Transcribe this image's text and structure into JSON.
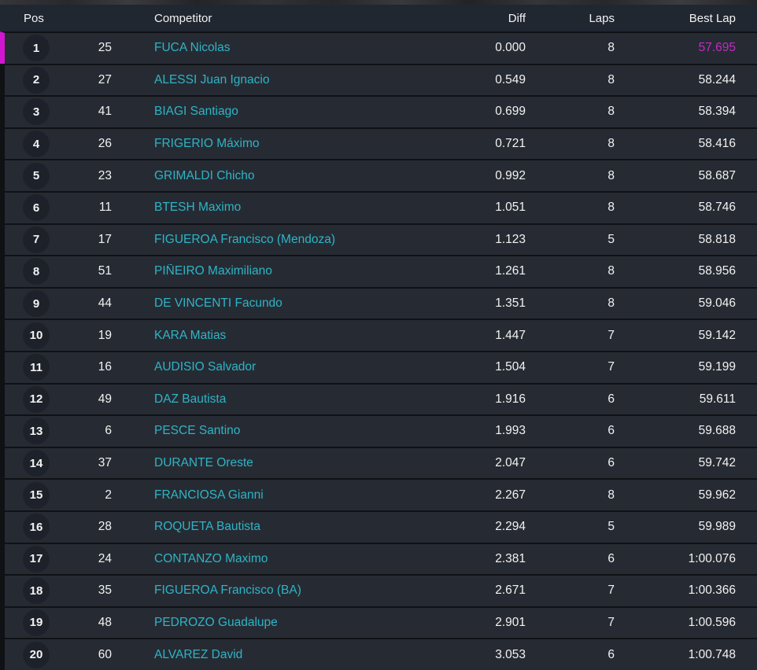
{
  "table": {
    "columns": {
      "pos": "Pos",
      "competitor": "Competitor",
      "diff": "Diff",
      "laps": "Laps",
      "best_lap": "Best Lap"
    },
    "rows": [
      {
        "pos": "1",
        "car_number": "25",
        "name": "FUCA Nicolas",
        "diff": "0.000",
        "laps": "8",
        "best_lap": "57.695",
        "leader": true,
        "fastest_lap": true
      },
      {
        "pos": "2",
        "car_number": "27",
        "name": "ALESSI Juan Ignacio",
        "diff": "0.549",
        "laps": "8",
        "best_lap": "58.244"
      },
      {
        "pos": "3",
        "car_number": "41",
        "name": "BIAGI Santiago",
        "diff": "0.699",
        "laps": "8",
        "best_lap": "58.394"
      },
      {
        "pos": "4",
        "car_number": "26",
        "name": "FRIGERIO Máximo",
        "diff": "0.721",
        "laps": "8",
        "best_lap": "58.416"
      },
      {
        "pos": "5",
        "car_number": "23",
        "name": "GRIMALDI Chicho",
        "diff": "0.992",
        "laps": "8",
        "best_lap": "58.687"
      },
      {
        "pos": "6",
        "car_number": "11",
        "name": "BTESH Maximo",
        "diff": "1.051",
        "laps": "8",
        "best_lap": "58.746"
      },
      {
        "pos": "7",
        "car_number": "17",
        "name": "FIGUEROA Francisco (Mendoza)",
        "diff": "1.123",
        "laps": "5",
        "best_lap": "58.818"
      },
      {
        "pos": "8",
        "car_number": "51",
        "name": "PIÑEIRO Maximiliano",
        "diff": "1.261",
        "laps": "8",
        "best_lap": "58.956"
      },
      {
        "pos": "9",
        "car_number": "44",
        "name": "DE VINCENTI Facundo",
        "diff": "1.351",
        "laps": "8",
        "best_lap": "59.046"
      },
      {
        "pos": "10",
        "car_number": "19",
        "name": "KARA Matias",
        "diff": "1.447",
        "laps": "7",
        "best_lap": "59.142"
      },
      {
        "pos": "11",
        "car_number": "16",
        "name": "AUDISIO Salvador",
        "diff": "1.504",
        "laps": "7",
        "best_lap": "59.199"
      },
      {
        "pos": "12",
        "car_number": "49",
        "name": "DAZ Bautista",
        "diff": "1.916",
        "laps": "6",
        "best_lap": "59.611"
      },
      {
        "pos": "13",
        "car_number": "6",
        "name": "PESCE Santino",
        "diff": "1.993",
        "laps": "6",
        "best_lap": "59.688"
      },
      {
        "pos": "14",
        "car_number": "37",
        "name": "DURANTE Oreste",
        "diff": "2.047",
        "laps": "6",
        "best_lap": "59.742"
      },
      {
        "pos": "15",
        "car_number": "2",
        "name": "FRANCIOSA Gianni",
        "diff": "2.267",
        "laps": "8",
        "best_lap": "59.962"
      },
      {
        "pos": "16",
        "car_number": "28",
        "name": "ROQUETA Bautista",
        "diff": "2.294",
        "laps": "5",
        "best_lap": "59.989"
      },
      {
        "pos": "17",
        "car_number": "24",
        "name": "CONTANZO Maximo",
        "diff": "2.381",
        "laps": "6",
        "best_lap": "1:00.076"
      },
      {
        "pos": "18",
        "car_number": "35",
        "name": "FIGUEROA Francisco (BA)",
        "diff": "2.671",
        "laps": "7",
        "best_lap": "1:00.366"
      },
      {
        "pos": "19",
        "car_number": "48",
        "name": "PEDROZO Guadalupe",
        "diff": "2.901",
        "laps": "7",
        "best_lap": "1:00.596"
      },
      {
        "pos": "20",
        "car_number": "60",
        "name": "ALVAREZ David",
        "diff": "3.053",
        "laps": "6",
        "best_lap": "1:00.748"
      }
    ]
  },
  "colors": {
    "page_bg": "#0f1115",
    "header_bg": "#212731",
    "row_bg": "#262b33",
    "position_circle_bg": "#1d222a",
    "text": "#f2f2f2",
    "competitor_name": "#2eb4c6",
    "leader_stripe": "#d016d0",
    "fastest_lap": "#c42ac8"
  }
}
